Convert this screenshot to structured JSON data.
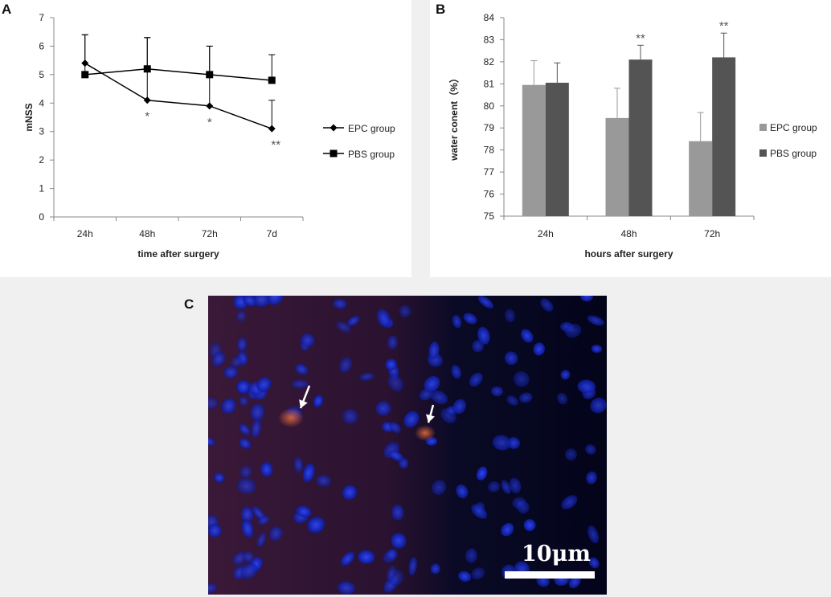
{
  "panels": {
    "a_label": "A",
    "b_label": "B",
    "c_label": "C"
  },
  "chart_data": [
    {
      "type": "line",
      "panel": "A",
      "categories": [
        "24h",
        "48h",
        "72h",
        "7d"
      ],
      "xlabel": "time after surgery",
      "ylabel": "mNSS",
      "ylim": [
        0,
        7
      ],
      "yticks": [
        0,
        1,
        2,
        3,
        4,
        5,
        6,
        7
      ],
      "legend_position": "right",
      "series": [
        {
          "name": "EPC group",
          "marker": "diamond",
          "values": [
            5.4,
            4.1,
            3.9,
            3.1
          ],
          "errors": [
            1.0,
            2.2,
            2.1,
            1.0
          ],
          "significance": [
            "",
            "*",
            "*",
            "**"
          ]
        },
        {
          "name": "PBS group",
          "marker": "square",
          "values": [
            5.0,
            5.2,
            5.0,
            4.8
          ],
          "errors": [
            1.4,
            1.1,
            1.0,
            0.9
          ],
          "significance": [
            "",
            "",
            "",
            ""
          ]
        }
      ],
      "colors": {
        "line": "#000000"
      }
    },
    {
      "type": "bar",
      "panel": "B",
      "categories": [
        "24h",
        "48h",
        "72h"
      ],
      "xlabel": "hours after surgery",
      "ylabel": "water conent（%）",
      "ylim": [
        75,
        84
      ],
      "yticks": [
        75,
        76,
        77,
        78,
        79,
        80,
        81,
        82,
        83,
        84
      ],
      "legend_position": "right",
      "series": [
        {
          "name": "EPC group",
          "color": "#999999",
          "values": [
            80.95,
            79.45,
            78.4
          ],
          "errors": [
            1.1,
            1.35,
            1.3
          ],
          "significance": [
            "",
            "",
            ""
          ]
        },
        {
          "name": "PBS group",
          "color": "#545454",
          "values": [
            81.05,
            82.1,
            82.2
          ],
          "errors": [
            0.9,
            0.65,
            1.1
          ],
          "significance": [
            "",
            "**",
            "**"
          ]
        }
      ]
    }
  ],
  "micrograph": {
    "scale_bar_label": "10μm",
    "colors": {
      "background": "#030418",
      "nuclei": "#1a2bd9",
      "stain": "#8a2a1c",
      "arrow": "#ffffff"
    }
  }
}
